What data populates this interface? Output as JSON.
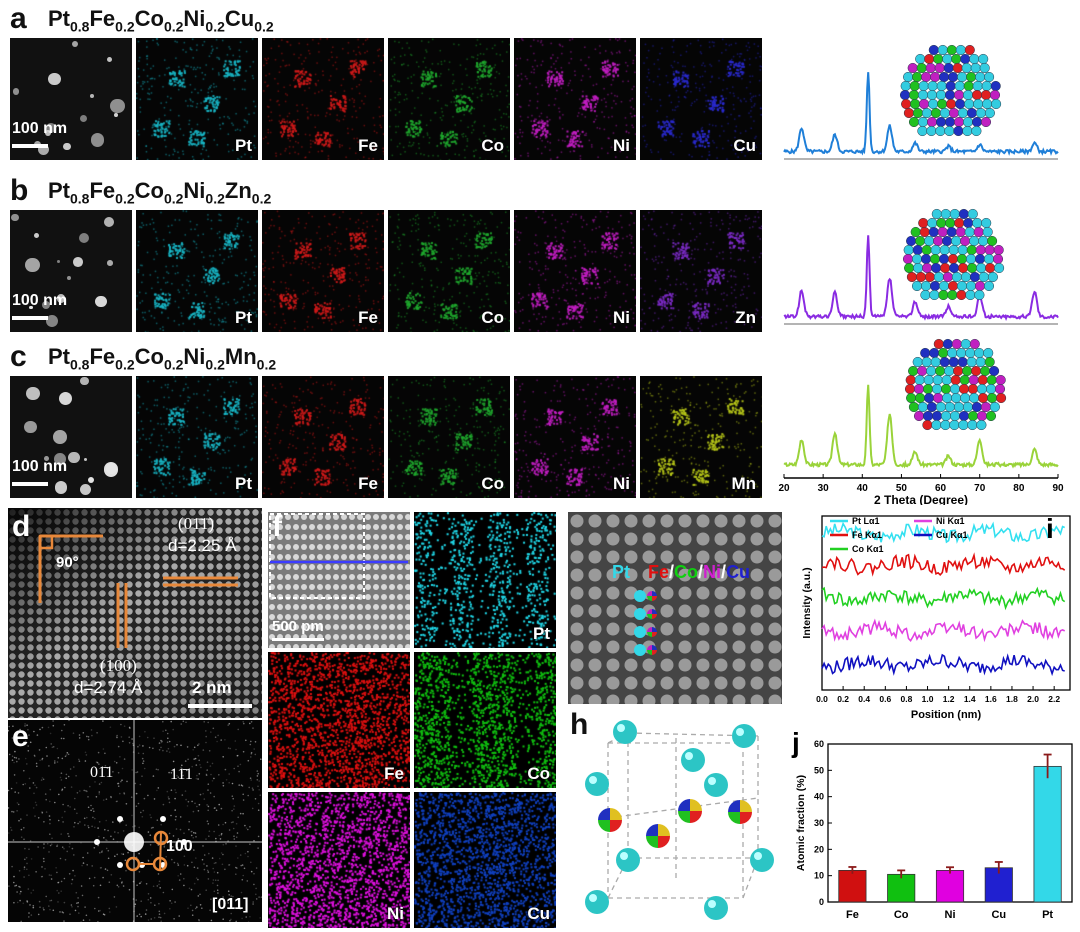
{
  "panels": {
    "a": {
      "letter": "a",
      "formula": [
        [
          "Pt",
          "0.8"
        ],
        [
          "Fe",
          "0.2"
        ],
        [
          "Co",
          "0.2"
        ],
        [
          "Ni",
          "0.2"
        ],
        [
          "Cu",
          "0.2"
        ]
      ],
      "scale": "100 nm",
      "elements": [
        "Pt",
        "Fe",
        "Co",
        "Ni",
        "Cu"
      ],
      "colors": [
        "#18b8c8",
        "#d21a1a",
        "#1fa82e",
        "#c41ec4",
        "#2a2ad0"
      ],
      "xrd_color": "#1f7fd8"
    },
    "b": {
      "letter": "b",
      "formula": [
        [
          "Pt",
          "0.8"
        ],
        [
          "Fe",
          "0.2"
        ],
        [
          "Co",
          "0.2"
        ],
        [
          "Ni",
          "0.2"
        ],
        [
          "Zn",
          "0.2"
        ]
      ],
      "scale": "100 nm",
      "elements": [
        "Pt",
        "Fe",
        "Co",
        "Ni",
        "Zn"
      ],
      "colors": [
        "#18b8c8",
        "#d21a1a",
        "#1fa82e",
        "#c41ec4",
        "#7d2bc9"
      ],
      "xrd_color": "#8a2be2"
    },
    "c": {
      "letter": "c",
      "formula": [
        [
          "Pt",
          "0.8"
        ],
        [
          "Fe",
          "0.2"
        ],
        [
          "Co",
          "0.2"
        ],
        [
          "Ni",
          "0.2"
        ],
        [
          "Mn",
          "0.2"
        ]
      ],
      "scale": "100 nm",
      "elements": [
        "Pt",
        "Fe",
        "Co",
        "Ni",
        "Mn"
      ],
      "colors": [
        "#18b8c8",
        "#d21a1a",
        "#1fa82e",
        "#c41ec4",
        "#b8c818"
      ],
      "xrd_color": "#9ad33a"
    },
    "d": {
      "letter": "d",
      "angle": "90°",
      "plane1": "(01̄1̄)",
      "d1": "d=2.25 Å",
      "plane2": "(100)",
      "d2": "d=2.74 Å",
      "scale": "2 nm"
    },
    "e": {
      "letter": "e",
      "spot1": "01̄1",
      "spot2": "11̄1",
      "spot3": "100",
      "zone": "[011]"
    },
    "f": {
      "letter": "f",
      "scale": "500 pm",
      "maps": [
        "Pt",
        "Fe",
        "Co",
        "Ni",
        "Cu"
      ]
    },
    "g": {
      "labels": [
        "Pt",
        "Fe",
        "/",
        "Co",
        "/",
        "Ni",
        "/",
        "Cu"
      ]
    },
    "h": {
      "letter": "h"
    },
    "i": {
      "letter": "i"
    },
    "j": {
      "letter": "j"
    }
  },
  "xrd_axis": {
    "label": "2 Theta (Degree)",
    "ticks": [
      "20",
      "30",
      "40",
      "50",
      "60",
      "70",
      "80",
      "90"
    ]
  },
  "chart_data": [
    {
      "type": "line",
      "id": "xrd",
      "title": "",
      "xlabel": "2 Theta (Degree)",
      "ylabel": "",
      "xlim": [
        20,
        90
      ],
      "x_ticks": [
        20,
        30,
        40,
        50,
        60,
        70,
        80,
        90
      ],
      "peaks_deg": [
        24.5,
        33,
        41.5,
        47,
        53.5,
        62,
        70,
        84
      ],
      "series": [
        {
          "name": "Pt0.8Fe0.2Co0.2Ni0.2Cu0.2",
          "color": "#1f7fd8",
          "peak_heights": [
            0.28,
            0.2,
            0.95,
            0.3,
            0.1,
            0.06,
            0.08,
            0.1
          ]
        },
        {
          "name": "Pt0.8Fe0.2Co0.2Ni0.2Zn0.2",
          "color": "#8a2be2",
          "peak_heights": [
            0.3,
            0.28,
            0.95,
            0.45,
            0.18,
            0.12,
            0.25,
            0.3
          ]
        },
        {
          "name": "Pt0.8Fe0.2Co0.2Ni0.2Mn0.2",
          "color": "#9ad33a",
          "peak_heights": [
            0.3,
            0.38,
            0.95,
            0.6,
            0.15,
            0.1,
            0.3,
            0.18
          ]
        }
      ]
    },
    {
      "type": "line",
      "id": "line-profile",
      "xlabel": "Position (nm)",
      "ylabel": "Intensity (a.u.)",
      "xlim": [
        0,
        2.35
      ],
      "x_ticks": [
        "0.0",
        "0.2",
        "0.4",
        "0.6",
        "0.8",
        "1.0",
        "1.2",
        "1.4",
        "1.6",
        "1.8",
        "2.0",
        "2.2"
      ],
      "series": [
        {
          "name": "Pt Lα1",
          "color": "#33e0f0",
          "offset": 0.9
        },
        {
          "name": "Fe Kα1",
          "color": "#e01010",
          "offset": 0.72
        },
        {
          "name": "Co Kα1",
          "color": "#22d022",
          "offset": 0.53
        },
        {
          "name": "Ni Kα1",
          "color": "#e040e0",
          "offset": 0.34
        },
        {
          "name": "Cu Kα1",
          "color": "#1010c0",
          "offset": 0.15
        }
      ]
    },
    {
      "type": "bar",
      "id": "atomic-fraction",
      "xlabel": "",
      "ylabel": "Atomic fraction (%)",
      "ylim": [
        0,
        60
      ],
      "y_ticks": [
        0,
        10,
        20,
        30,
        40,
        50,
        60
      ],
      "categories": [
        "Fe",
        "Co",
        "Ni",
        "Cu",
        "Pt"
      ],
      "values": [
        12,
        10.5,
        12,
        13,
        51.5
      ],
      "errors": [
        1.3,
        1.5,
        1.2,
        2.2,
        4.5
      ],
      "colors": [
        "#d01010",
        "#10c010",
        "#e000e0",
        "#2020d0",
        "#33d8e8"
      ]
    }
  ]
}
